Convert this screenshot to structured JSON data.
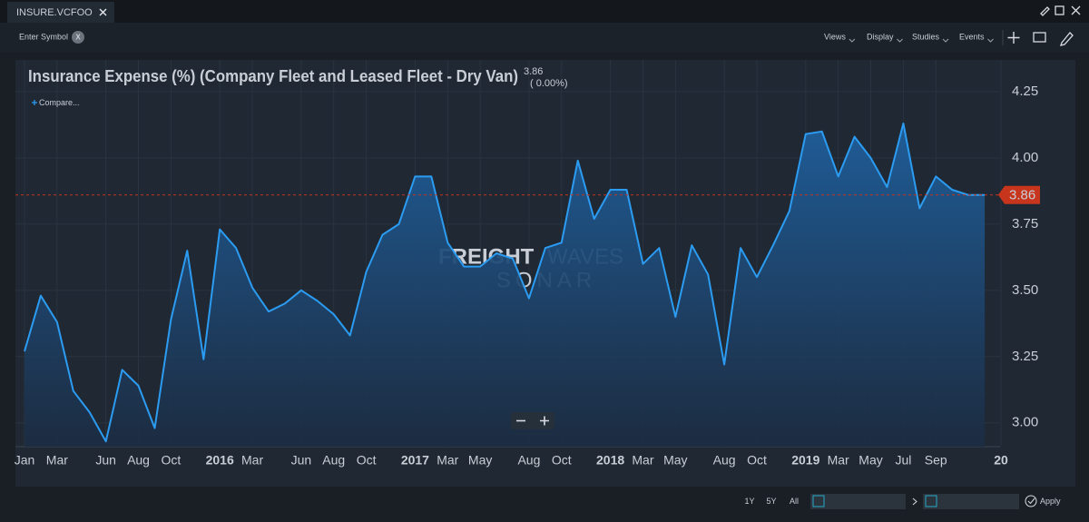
{
  "tab": {
    "title": "INSURE.VCFOO"
  },
  "toolbar": {
    "symbol_placeholder": "Enter Symbol",
    "clear": "X",
    "menus": [
      "Views",
      "Display",
      "Studies",
      "Events"
    ]
  },
  "chart_controls": {
    "compare": "Compare...",
    "watermark": [
      "FREIGHT",
      "WAVES",
      "SONAR"
    ]
  },
  "chart_data": {
    "type": "area",
    "title": "Insurance Expense (%) (Company Fleet and Leased Fleet - Dry Van)",
    "last_value": 3.86,
    "change_label": "( 0.00%)",
    "color": "#2b9cf2",
    "last_value_color": "#c7351c",
    "x": [
      "2015-01",
      "2015-02",
      "2015-03",
      "2015-04",
      "2015-05",
      "2015-06",
      "2015-07",
      "2015-08",
      "2015-09",
      "2015-10",
      "2015-11",
      "2015-12",
      "2016-01",
      "2016-02",
      "2016-03",
      "2016-04",
      "2016-05",
      "2016-06",
      "2016-07",
      "2016-08",
      "2016-09",
      "2016-10",
      "2016-11",
      "2016-12",
      "2017-01",
      "2017-02",
      "2017-03",
      "2017-04",
      "2017-05",
      "2017-06",
      "2017-07",
      "2017-08",
      "2017-09",
      "2017-10",
      "2017-11",
      "2017-12",
      "2018-01",
      "2018-02",
      "2018-03",
      "2018-04",
      "2018-05",
      "2018-06",
      "2018-07",
      "2018-08",
      "2018-09",
      "2018-10",
      "2018-11",
      "2018-12",
      "2019-01",
      "2019-02",
      "2019-03",
      "2019-04",
      "2019-05",
      "2019-06",
      "2019-07",
      "2019-08",
      "2019-09",
      "2019-10",
      "2019-11",
      "2019-12"
    ],
    "values": [
      3.27,
      3.48,
      3.38,
      3.12,
      3.04,
      2.93,
      3.2,
      3.14,
      2.98,
      3.39,
      3.65,
      3.24,
      3.73,
      3.66,
      3.51,
      3.42,
      3.45,
      3.5,
      3.46,
      3.41,
      3.33,
      3.57,
      3.71,
      3.75,
      3.93,
      3.93,
      3.68,
      3.59,
      3.59,
      3.64,
      3.62,
      3.47,
      3.66,
      3.68,
      3.99,
      3.77,
      3.88,
      3.88,
      3.6,
      3.66,
      3.4,
      3.67,
      3.56,
      3.22,
      3.66,
      3.55,
      3.67,
      3.8,
      4.09,
      4.1,
      3.93,
      4.08,
      4.0,
      3.89,
      4.13,
      3.81,
      3.93,
      3.88,
      3.86,
      3.86
    ],
    "xlim": [
      "2015-01",
      "2020-01"
    ],
    "xticks": [
      {
        "value": "2015-01",
        "label": "Jan"
      },
      {
        "value": "2015-03",
        "label": "Mar"
      },
      {
        "value": "2015-06",
        "label": "Jun"
      },
      {
        "value": "2015-08",
        "label": "Aug"
      },
      {
        "value": "2015-10",
        "label": "Oct"
      },
      {
        "value": "2016-01",
        "label": "2016"
      },
      {
        "value": "2016-03",
        "label": "Mar"
      },
      {
        "value": "2016-06",
        "label": "Jun"
      },
      {
        "value": "2016-08",
        "label": "Aug"
      },
      {
        "value": "2016-10",
        "label": "Oct"
      },
      {
        "value": "2017-01",
        "label": "2017"
      },
      {
        "value": "2017-03",
        "label": "Mar"
      },
      {
        "value": "2017-05",
        "label": "May"
      },
      {
        "value": "2017-08",
        "label": "Aug"
      },
      {
        "value": "2017-10",
        "label": "Oct"
      },
      {
        "value": "2018-01",
        "label": "2018"
      },
      {
        "value": "2018-03",
        "label": "Mar"
      },
      {
        "value": "2018-05",
        "label": "May"
      },
      {
        "value": "2018-08",
        "label": "Aug"
      },
      {
        "value": "2018-10",
        "label": "Oct"
      },
      {
        "value": "2019-01",
        "label": "2019"
      },
      {
        "value": "2019-03",
        "label": "Mar"
      },
      {
        "value": "2019-05",
        "label": "May"
      },
      {
        "value": "2019-07",
        "label": "Jul"
      },
      {
        "value": "2019-09",
        "label": "Sep"
      },
      {
        "value": "2020-01",
        "label": "20"
      }
    ],
    "ylim": [
      2.91,
      4.37
    ],
    "yticks": [
      {
        "value": 3.0,
        "label": "3.00"
      },
      3.25,
      {
        "value": 3.5,
        "label": "3.50"
      },
      3.75,
      {
        "value": 4.0,
        "label": "4.00"
      },
      4.25
    ],
    "grid": true
  },
  "footer": {
    "ranges": [
      "1Y",
      "5Y",
      "All"
    ],
    "apply": "Apply"
  }
}
